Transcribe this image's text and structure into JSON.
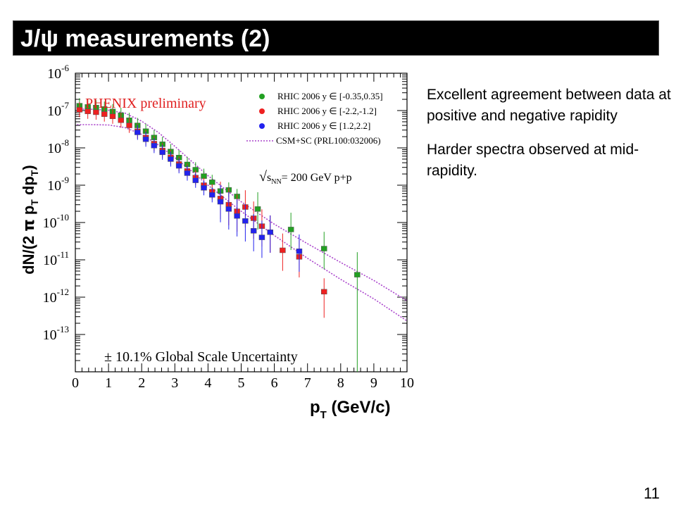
{
  "slide": {
    "title": "J/ψ measurements (2)",
    "page_number": "11",
    "notes": [
      "Excellent agreement between data at positive and negative rapidity",
      "Harder spectra observed at mid-rapidity."
    ]
  },
  "chart_data": {
    "type": "scatter",
    "y_scale": "log",
    "xlim": [
      0,
      10
    ],
    "ylim": [
      1e-14,
      1e-06
    ],
    "grid": false,
    "legend_position": "top-right",
    "x_ticks": [
      "0",
      "1",
      "2",
      "3",
      "4",
      "5",
      "6",
      "7",
      "8",
      "9",
      "10"
    ],
    "y_ticks": [
      {
        "base": "10",
        "exp": "-6"
      },
      {
        "base": "10",
        "exp": "-7"
      },
      {
        "base": "10",
        "exp": "-8"
      },
      {
        "base": "10",
        "exp": "-9"
      },
      {
        "base": "10",
        "exp": "-10"
      },
      {
        "base": "10",
        "exp": "-11"
      },
      {
        "base": "10",
        "exp": "-12"
      },
      {
        "base": "10",
        "exp": "-13"
      }
    ],
    "xlabel": {
      "main": "p",
      "sub": "T",
      "rest": " (GeV/c)"
    },
    "ylabel": {
      "a": "dN/(2 ",
      "pi": "π",
      "b": " p",
      "s1": "T",
      "c": " dp",
      "s2": "T",
      "d": ")"
    },
    "annotations": {
      "preliminary": "PHENIX preliminary",
      "energy": {
        "sqrt": "√",
        "s": "s",
        "sub": "NN",
        "rest": "= 200 GeV p+p"
      },
      "scale_uncertainty": "± 10.1% Global Scale Uncertainty"
    },
    "legend": [
      {
        "label": "RHIC 2006 y ∈ [-0.35,0.35]",
        "color": "#22a022"
      },
      {
        "label": "RHIC 2006 y ∈ [-2.2,-1.2]",
        "color": "#ee2020"
      },
      {
        "label": "RHIC 2006 y ∈ [1.2,2.2]",
        "color": "#2222ee"
      },
      {
        "label": "CSM+SC (PRL100:032006)",
        "color": "#aa44cc"
      }
    ],
    "series": [
      {
        "name": "RHIC 2006 y ∈ [-0.35,0.35]",
        "color": "#22a022",
        "points": [
          {
            "x": 0.125,
            "y": 1.35e-07
          },
          {
            "x": 0.375,
            "y": 1.25e-07
          },
          {
            "x": 0.625,
            "y": 1.2e-07
          },
          {
            "x": 0.875,
            "y": 1.1e-07
          },
          {
            "x": 1.125,
            "y": 9.5e-08
          },
          {
            "x": 1.375,
            "y": 7.5e-08
          },
          {
            "x": 1.625,
            "y": 5.5e-08
          },
          {
            "x": 1.875,
            "y": 4e-08
          },
          {
            "x": 2.125,
            "y": 2.8e-08
          },
          {
            "x": 2.375,
            "y": 1.9e-08
          },
          {
            "x": 2.625,
            "y": 1.25e-08
          },
          {
            "x": 2.875,
            "y": 8e-09
          },
          {
            "x": 3.125,
            "y": 5.5e-09
          },
          {
            "x": 3.375,
            "y": 3.6e-09
          },
          {
            "x": 3.625,
            "y": 2.6e-09
          },
          {
            "x": 3.875,
            "y": 1.75e-09
          },
          {
            "x": 4.125,
            "y": 1.2e-09
          },
          {
            "x": 4.375,
            "y": 7e-10
          },
          {
            "x": 4.625,
            "y": 7.5e-10
          },
          {
            "x": 4.875,
            "y": 5e-10
          },
          {
            "x": 5.5,
            "y": 2.3e-10
          },
          {
            "x": 6.5,
            "y": 6.5e-11
          },
          {
            "x": 7.5,
            "y": 2e-11
          },
          {
            "x": 8.5,
            "y": 4e-12
          }
        ]
      },
      {
        "name": "RHIC 2006 y ∈ [-2.2,-1.2]",
        "color": "#ee2020",
        "points": [
          {
            "x": 0.125,
            "y": 1.05e-07
          },
          {
            "x": 0.375,
            "y": 9.5e-08
          },
          {
            "x": 0.625,
            "y": 9e-08
          },
          {
            "x": 0.875,
            "y": 8e-08
          },
          {
            "x": 1.125,
            "y": 7e-08
          },
          {
            "x": 1.375,
            "y": 5.5e-08
          },
          {
            "x": 1.625,
            "y": 4e-08
          },
          {
            "x": 1.875,
            "y": 2.8e-08
          },
          {
            "x": 2.125,
            "y": 1.9e-08
          },
          {
            "x": 2.375,
            "y": 1.3e-08
          },
          {
            "x": 2.625,
            "y": 8.5e-09
          },
          {
            "x": 2.875,
            "y": 5.6e-09
          },
          {
            "x": 3.125,
            "y": 3.7e-09
          },
          {
            "x": 3.375,
            "y": 2.4e-09
          },
          {
            "x": 3.625,
            "y": 1.6e-09
          },
          {
            "x": 3.875,
            "y": 1e-09
          },
          {
            "x": 4.125,
            "y": 6.7e-10
          },
          {
            "x": 4.375,
            "y": 4.4e-10
          },
          {
            "x": 4.625,
            "y": 3e-10
          },
          {
            "x": 4.875,
            "y": 2e-10
          },
          {
            "x": 5.125,
            "y": 2.6e-10
          },
          {
            "x": 5.375,
            "y": 1.3e-10
          },
          {
            "x": 5.625,
            "y": 8e-11
          },
          {
            "x": 5.875,
            "y": 5.5e-11
          },
          {
            "x": 6.25,
            "y": 1.8e-11
          },
          {
            "x": 6.75,
            "y": 1.2e-11
          },
          {
            "x": 7.5,
            "y": 1.4e-12
          }
        ]
      },
      {
        "name": "RHIC 2006 y ∈ [1.2,2.2]",
        "color": "#2222ee",
        "points": [
          {
            "x": 1.875,
            "y": 2.6e-08
          },
          {
            "x": 2.125,
            "y": 1.7e-08
          },
          {
            "x": 2.375,
            "y": 1.15e-08
          },
          {
            "x": 2.625,
            "y": 7.6e-09
          },
          {
            "x": 2.875,
            "y": 5e-09
          },
          {
            "x": 3.125,
            "y": 3.3e-09
          },
          {
            "x": 3.375,
            "y": 2.1e-09
          },
          {
            "x": 3.625,
            "y": 1.35e-09
          },
          {
            "x": 3.875,
            "y": 8.5e-10
          },
          {
            "x": 4.125,
            "y": 5.5e-10
          },
          {
            "x": 4.375,
            "y": 3.6e-10
          },
          {
            "x": 4.625,
            "y": 2.3e-10
          },
          {
            "x": 4.875,
            "y": 1.5e-10
          },
          {
            "x": 5.125,
            "y": 1.1e-10
          },
          {
            "x": 5.375,
            "y": 6e-11
          },
          {
            "x": 5.625,
            "y": 4e-11
          },
          {
            "x": 5.875,
            "y": 5.5e-11
          },
          {
            "x": 6.75,
            "y": 1.7e-11
          }
        ]
      }
    ],
    "theory_curves": [
      {
        "name": "CSM+SC (PRL100:032006)",
        "color": "#aa44cc",
        "points": [
          {
            "x": 0.05,
            "y": 1.1e-07
          },
          {
            "x": 0.5,
            "y": 1.08e-07
          },
          {
            "x": 1.0,
            "y": 1.02e-07
          },
          {
            "x": 1.5,
            "y": 8.5e-08
          },
          {
            "x": 2.0,
            "y": 5.2e-08
          },
          {
            "x": 2.5,
            "y": 2.6e-08
          },
          {
            "x": 3.0,
            "y": 1.1e-08
          },
          {
            "x": 3.5,
            "y": 4.4e-09
          },
          {
            "x": 4.0,
            "y": 1.8e-09
          },
          {
            "x": 5.0,
            "y": 3.6e-10
          },
          {
            "x": 6.0,
            "y": 9e-11
          },
          {
            "x": 7.0,
            "y": 2.7e-11
          },
          {
            "x": 8.0,
            "y": 8.5e-12
          },
          {
            "x": 9.0,
            "y": 2.8e-12
          },
          {
            "x": 10.0,
            "y": 8e-13
          }
        ]
      },
      {
        "name": "CSM+SC (PRL100:032006)",
        "color": "#aa44cc",
        "points": [
          {
            "x": 0.05,
            "y": 4.2e-08
          },
          {
            "x": 0.5,
            "y": 4.2e-08
          },
          {
            "x": 1.0,
            "y": 4.1e-08
          },
          {
            "x": 1.5,
            "y": 3.5e-08
          },
          {
            "x": 2.0,
            "y": 2.3e-08
          },
          {
            "x": 2.5,
            "y": 1.2e-08
          },
          {
            "x": 3.0,
            "y": 5.5e-09
          },
          {
            "x": 3.5,
            "y": 2.4e-09
          },
          {
            "x": 4.0,
            "y": 1e-09
          },
          {
            "x": 5.0,
            "y": 2e-10
          },
          {
            "x": 6.0,
            "y": 4.5e-11
          },
          {
            "x": 7.0,
            "y": 1.1e-11
          },
          {
            "x": 8.0,
            "y": 3e-12
          },
          {
            "x": 9.0,
            "y": 9e-13
          },
          {
            "x": 10.0,
            "y": 2.3e-13
          }
        ]
      }
    ]
  }
}
